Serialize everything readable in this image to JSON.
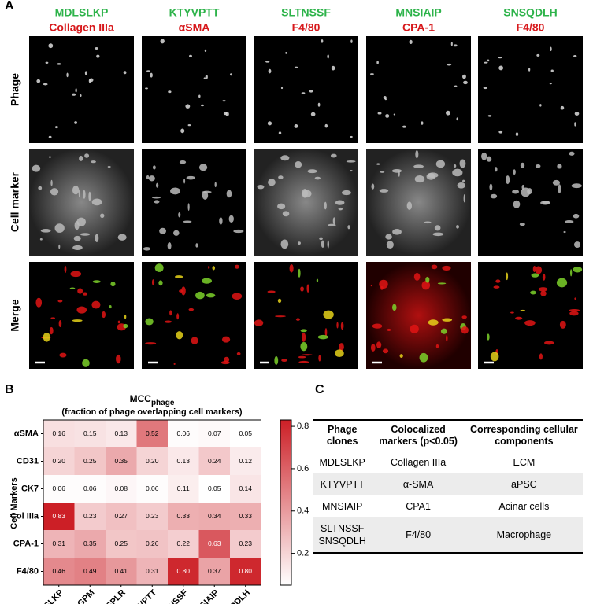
{
  "panel_a": {
    "letter": "A",
    "columns": [
      {
        "clone": "MDLSLKP",
        "marker": "Collagen IIIa"
      },
      {
        "clone": "KTYVPTT",
        "marker": "αSMA"
      },
      {
        "clone": "SLTNSSF",
        "marker": "F4/80"
      },
      {
        "clone": "MNSIAIP",
        "marker": "CPA-1"
      },
      {
        "clone": "SNSQDLH",
        "marker": "F4/80"
      }
    ],
    "rows": [
      "Phage",
      "Cell marker",
      "Merge"
    ]
  },
  "chart_data": {
    "type": "heatmap",
    "letter": "B",
    "title": "MCC",
    "title_subscript": "phage",
    "subtitle": "(fraction of phage overlapping cell markers)",
    "y_label": "Cell Markers",
    "rows": [
      "αSMA",
      "CD31",
      "CK7",
      "Col IIIa",
      "CPA-1",
      "F4/80"
    ],
    "columns": [
      "MDLSLKP",
      "SLPLGPM",
      "HPYSPLR",
      "KTYVPTT",
      "SLTNSSF",
      "MNSIAIP",
      "SNSQDLH"
    ],
    "values": [
      [
        0.16,
        0.15,
        0.13,
        0.52,
        0.06,
        0.07,
        0.05
      ],
      [
        0.2,
        0.25,
        0.35,
        0.2,
        0.13,
        0.24,
        0.12
      ],
      [
        0.06,
        0.06,
        0.08,
        0.06,
        0.11,
        0.05,
        0.14
      ],
      [
        0.83,
        0.23,
        0.27,
        0.23,
        0.33,
        0.34,
        0.33
      ],
      [
        0.31,
        0.35,
        0.25,
        0.26,
        0.22,
        0.63,
        0.23
      ],
      [
        0.46,
        0.49,
        0.41,
        0.31,
        0.8,
        0.37,
        0.8
      ]
    ],
    "value_labels": [
      [
        "0.16",
        "0.15",
        "0.13",
        "0.52",
        "0.06",
        "0.07",
        "0.05"
      ],
      [
        "0.20",
        "0.25",
        "0.35",
        "0.20",
        "0.13",
        "0.24",
        "0.12"
      ],
      [
        "0.06",
        "0.06",
        "0.08",
        "0.06",
        "0.11",
        "0.05",
        "0.14"
      ],
      [
        "0.83",
        "0.23",
        "0.27",
        "0.23",
        "0.33",
        "0.34",
        "0.33"
      ],
      [
        "0.31",
        "0.35",
        "0.25",
        "0.26",
        "0.22",
        "0.63",
        "0.23"
      ],
      [
        "0.46",
        "0.49",
        "0.41",
        "0.31",
        "0.80",
        "0.37",
        "0.80"
      ]
    ],
    "zlim": [
      0.05,
      0.83
    ],
    "zticks": [
      0.2,
      0.4,
      0.6,
      0.8
    ],
    "colors": [
      "#ffffff",
      "#cc1f26"
    ]
  },
  "panel_c": {
    "letter": "C",
    "header": [
      "Phage clones",
      "Colocalized markers (p<0.05)",
      "Corresponding cellular components"
    ],
    "rows": [
      [
        [
          "MDLSLKP"
        ],
        "Collagen IIIa",
        "ECM"
      ],
      [
        [
          "KTYVPTT"
        ],
        "α-SMA",
        "aPSC"
      ],
      [
        [
          "MNSIAIP"
        ],
        "CPA1",
        "Acinar cells"
      ],
      [
        [
          "SLTNSSF",
          "SNSQDLH"
        ],
        "F4/80",
        "Macrophage"
      ]
    ]
  }
}
